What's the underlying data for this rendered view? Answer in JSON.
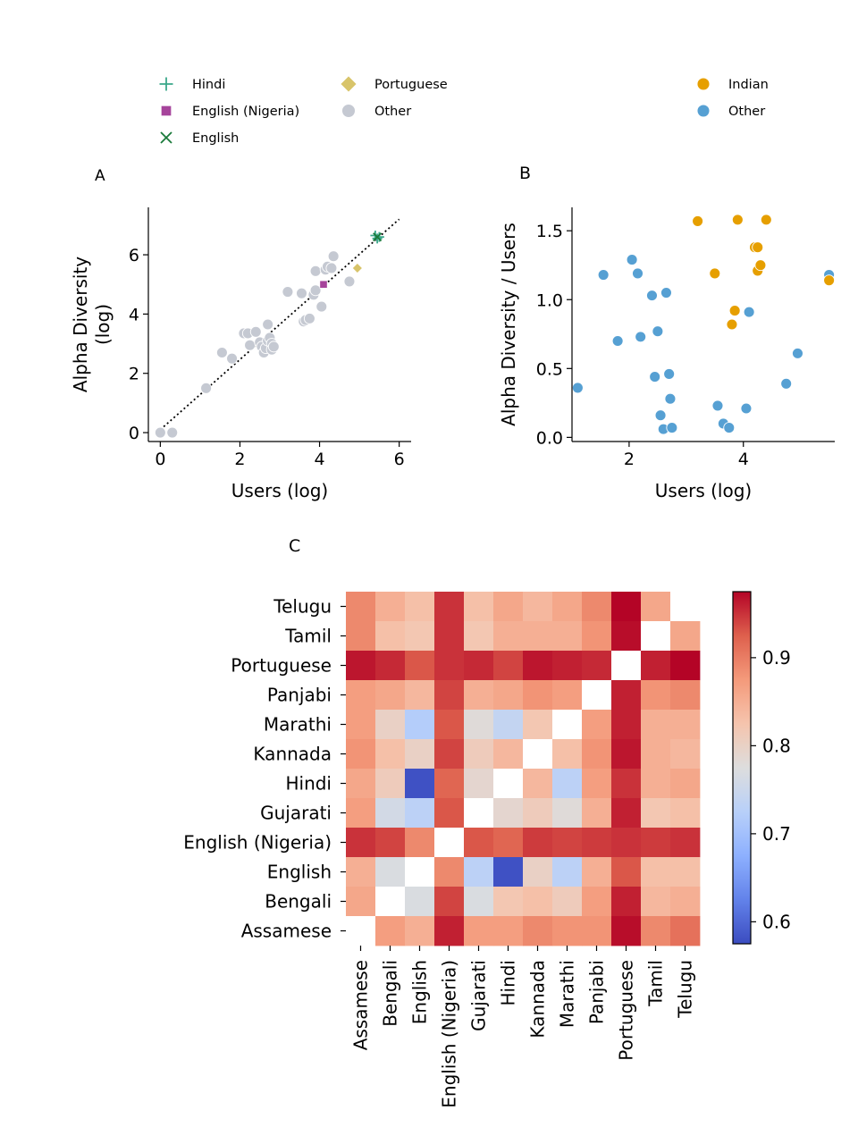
{
  "chart_data": [
    {
      "panel": "A",
      "type": "scatter",
      "xlabel": "Users (log)",
      "ylabel_lines": [
        "Alpha Diversity",
        "(log)"
      ],
      "xlim": [
        -0.3,
        6.3
      ],
      "ylim": [
        -0.3,
        7.6
      ],
      "xticks": [
        0,
        2,
        4,
        6
      ],
      "yticks": [
        0,
        2,
        4,
        6
      ],
      "grid": false,
      "legend_position": "top-left",
      "reference_line": {
        "style": "dotted",
        "from": [
          0,
          0.1
        ],
        "to": [
          6,
          7.2
        ]
      },
      "series": [
        {
          "name": "Hindi",
          "marker": "plus",
          "color": "#3aa88a",
          "points": [
            [
              5.4,
              6.65
            ],
            [
              5.45,
              6.55
            ],
            [
              5.5,
              6.6
            ]
          ]
        },
        {
          "name": "English (Nigeria)",
          "marker": "square",
          "color": "#a6449b",
          "points": [
            [
              4.1,
              5.0
            ]
          ]
        },
        {
          "name": "English",
          "marker": "x",
          "color": "#1a7a3a",
          "points": [
            [
              5.45,
              6.6
            ]
          ]
        },
        {
          "name": "Portuguese",
          "marker": "diamond",
          "color": "#d8c46a",
          "points": [
            [
              4.95,
              5.55
            ]
          ]
        },
        {
          "name": "Other",
          "marker": "circle",
          "color": "#c5c9d2",
          "points": [
            [
              0.0,
              0.0
            ],
            [
              0.3,
              0.0
            ],
            [
              1.15,
              1.5
            ],
            [
              1.55,
              2.7
            ],
            [
              1.8,
              2.5
            ],
            [
              2.1,
              3.35
            ],
            [
              2.2,
              3.35
            ],
            [
              2.25,
              2.95
            ],
            [
              2.4,
              3.4
            ],
            [
              2.5,
              3.05
            ],
            [
              2.55,
              2.9
            ],
            [
              2.6,
              2.7
            ],
            [
              2.65,
              2.85
            ],
            [
              2.7,
              3.1
            ],
            [
              2.7,
              3.65
            ],
            [
              2.75,
              3.2
            ],
            [
              2.8,
              3.0
            ],
            [
              2.8,
              2.8
            ],
            [
              2.85,
              2.9
            ],
            [
              3.2,
              4.75
            ],
            [
              3.55,
              4.7
            ],
            [
              3.6,
              3.75
            ],
            [
              3.65,
              3.8
            ],
            [
              3.75,
              3.85
            ],
            [
              3.85,
              4.65
            ],
            [
              3.9,
              4.8
            ],
            [
              3.9,
              5.45
            ],
            [
              4.05,
              4.25
            ],
            [
              4.15,
              5.5
            ],
            [
              4.2,
              5.6
            ],
            [
              4.3,
              5.55
            ],
            [
              4.35,
              5.95
            ],
            [
              4.75,
              5.1
            ]
          ]
        }
      ]
    },
    {
      "panel": "B",
      "type": "scatter",
      "xlabel": "Users (log)",
      "ylabel": "Alpha Diversity / Users",
      "xlim": [
        1.0,
        5.6
      ],
      "ylim": [
        -0.03,
        1.67
      ],
      "xticks": [
        2,
        4
      ],
      "yticks": [
        0.0,
        0.5,
        1.0,
        1.5
      ],
      "ytick_labels": [
        "0.0",
        "0.5",
        "1.0",
        "1.5"
      ],
      "grid": false,
      "legend_position": "top-right",
      "series": [
        {
          "name": "Indian",
          "color": "#e69f00",
          "points": [
            [
              3.2,
              1.57
            ],
            [
              3.5,
              1.19
            ],
            [
              3.8,
              0.82
            ],
            [
              3.85,
              0.92
            ],
            [
              3.9,
              1.58
            ],
            [
              4.2,
              1.38
            ],
            [
              4.25,
              1.38
            ],
            [
              4.25,
              1.21
            ],
            [
              4.3,
              1.25
            ],
            [
              4.4,
              1.58
            ],
            [
              5.5,
              1.14
            ]
          ]
        },
        {
          "name": "Other",
          "color": "#56a0d3",
          "points": [
            [
              1.1,
              0.36
            ],
            [
              1.55,
              1.18
            ],
            [
              1.8,
              0.7
            ],
            [
              2.05,
              1.29
            ],
            [
              2.15,
              1.19
            ],
            [
              2.2,
              0.73
            ],
            [
              2.4,
              1.03
            ],
            [
              2.45,
              0.44
            ],
            [
              2.5,
              0.77
            ],
            [
              2.55,
              0.16
            ],
            [
              2.6,
              0.06
            ],
            [
              2.65,
              1.05
            ],
            [
              2.7,
              0.46
            ],
            [
              2.72,
              0.28
            ],
            [
              2.75,
              0.07
            ],
            [
              3.55,
              0.23
            ],
            [
              3.65,
              0.1
            ],
            [
              3.75,
              0.07
            ],
            [
              4.05,
              0.21
            ],
            [
              4.1,
              0.91
            ],
            [
              4.75,
              0.39
            ],
            [
              4.95,
              0.61
            ],
            [
              5.5,
              1.18
            ]
          ]
        }
      ]
    },
    {
      "panel": "C",
      "type": "heatmap",
      "languages": [
        "Assamese",
        "Bengali",
        "English",
        "English (Nigeria)",
        "Gujarati",
        "Hindi",
        "Kannada",
        "Marathi",
        "Panjabi",
        "Portuguese",
        "Tamil",
        "Telugu"
      ],
      "diagonal": "blank",
      "colorbar": {
        "cmap": "coolwarm",
        "vmin": 0.575,
        "vmax": 0.975,
        "ticks": [
          0.6,
          0.7,
          0.8,
          0.9
        ],
        "tick_labels": [
          "0.6",
          "0.7",
          "0.8",
          "0.9"
        ]
      },
      "rows_top_to_bottom": [
        "Telugu",
        "Tamil",
        "Portuguese",
        "Panjabi",
        "Marathi",
        "Kannada",
        "Hindi",
        "Gujarati",
        "English (Nigeria)",
        "English",
        "Bengali",
        "Assamese"
      ],
      "matrix_top_to_bottom": [
        [
          0.89,
          0.85,
          0.83,
          0.95,
          0.83,
          0.86,
          0.84,
          0.86,
          0.89,
          0.975,
          0.86,
          null
        ],
        [
          0.89,
          0.83,
          0.82,
          0.95,
          0.82,
          0.85,
          0.85,
          0.85,
          0.88,
          0.97,
          null,
          0.86
        ],
        [
          0.965,
          0.955,
          0.93,
          0.95,
          0.955,
          0.94,
          0.965,
          0.96,
          0.955,
          null,
          0.96,
          0.975
        ],
        [
          0.87,
          0.86,
          0.84,
          0.94,
          0.85,
          0.86,
          0.88,
          0.87,
          null,
          0.96,
          0.88,
          0.89
        ],
        [
          0.87,
          0.8,
          0.72,
          0.93,
          0.78,
          0.74,
          0.82,
          null,
          0.87,
          0.96,
          0.85,
          0.85
        ],
        [
          0.88,
          0.83,
          0.8,
          0.94,
          0.81,
          0.84,
          null,
          0.83,
          0.88,
          0.965,
          0.85,
          0.84
        ],
        [
          0.86,
          0.81,
          0.58,
          0.92,
          0.79,
          null,
          0.84,
          0.73,
          0.87,
          0.95,
          0.85,
          0.86
        ],
        [
          0.87,
          0.76,
          0.73,
          0.93,
          null,
          0.79,
          0.81,
          0.78,
          0.85,
          0.96,
          0.82,
          0.83
        ],
        [
          0.95,
          0.94,
          0.89,
          null,
          0.93,
          0.92,
          0.945,
          0.94,
          0.945,
          0.95,
          0.945,
          0.95
        ],
        [
          0.85,
          0.77,
          null,
          0.89,
          0.73,
          0.58,
          0.8,
          0.73,
          0.85,
          0.93,
          0.83,
          0.83
        ],
        [
          0.86,
          null,
          0.77,
          0.94,
          0.77,
          0.82,
          0.83,
          0.81,
          0.87,
          0.96,
          0.84,
          0.85
        ],
        [
          null,
          0.87,
          0.85,
          0.96,
          0.87,
          0.87,
          0.89,
          0.88,
          0.88,
          0.97,
          0.89,
          0.91
        ]
      ]
    }
  ],
  "panel_letters": {
    "a": "A",
    "b": "B",
    "c": "C"
  }
}
